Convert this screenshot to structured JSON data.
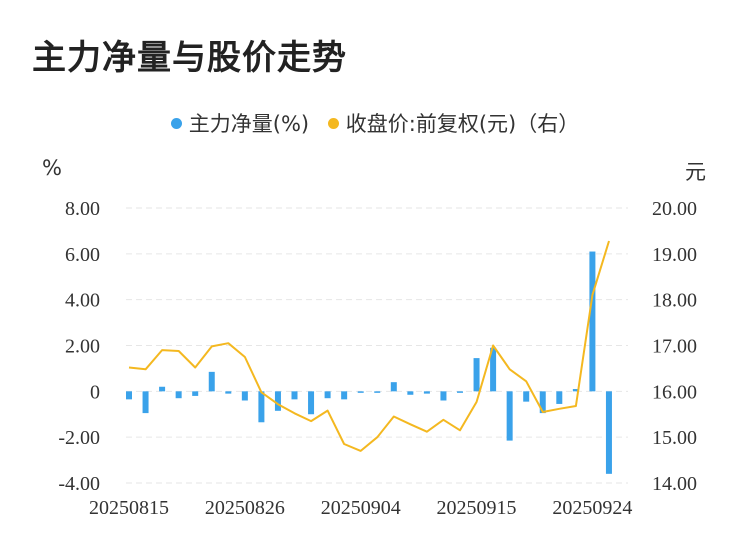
{
  "title": "主力净量与股价走势",
  "legend": {
    "net_label": "主力净量(%)",
    "price_label": "收盘价:前复权(元)（右）"
  },
  "units": {
    "left": "%",
    "right": "元"
  },
  "colors": {
    "bar": "#3aa2ea",
    "line": "#f4b820",
    "grid": "#e6e6e6"
  },
  "chart_data": {
    "type": "bar+line",
    "title": "主力净量与股价走势",
    "x_tick_labels": [
      "20250815",
      "20250826",
      "20250904",
      "20250915",
      "20250924"
    ],
    "x_tick_index": [
      0,
      7,
      14,
      21,
      28
    ],
    "left_axis": {
      "unit": "%",
      "ylim": [
        -4,
        8
      ],
      "ticks": [
        "8.00",
        "6.00",
        "4.00",
        "2.00",
        "0",
        "-2.00",
        "-4.00"
      ]
    },
    "right_axis": {
      "unit": "元",
      "ylim": [
        14,
        20
      ],
      "ticks": [
        "20.00",
        "19.00",
        "18.00",
        "17.00",
        "16.00",
        "15.00",
        "14.00"
      ]
    },
    "grid": true,
    "legend_position": "top-center",
    "series": [
      {
        "name": "主力净量(%)",
        "type": "bar",
        "axis": "left",
        "values": [
          -0.35,
          -0.95,
          0.2,
          -0.3,
          -0.2,
          0.85,
          -0.1,
          -0.4,
          -1.35,
          -0.85,
          -0.35,
          -1.0,
          -0.3,
          -0.35,
          -0.05,
          -0.05,
          0.4,
          -0.15,
          -0.1,
          -0.4,
          -0.05,
          1.45,
          1.9,
          -2.15,
          -0.45,
          -0.95,
          -0.55,
          0.1,
          6.1,
          -3.6
        ]
      },
      {
        "name": "收盘价:前复权(元)（右）",
        "type": "line",
        "axis": "right",
        "values": [
          16.52,
          16.48,
          16.9,
          16.88,
          16.52,
          16.98,
          17.05,
          16.75,
          15.98,
          15.72,
          15.52,
          15.35,
          15.58,
          14.85,
          14.7,
          15.0,
          15.45,
          15.28,
          15.12,
          15.38,
          15.15,
          15.77,
          17.0,
          16.48,
          16.22,
          15.55,
          15.62,
          15.68,
          18.1,
          19.28
        ]
      }
    ]
  }
}
